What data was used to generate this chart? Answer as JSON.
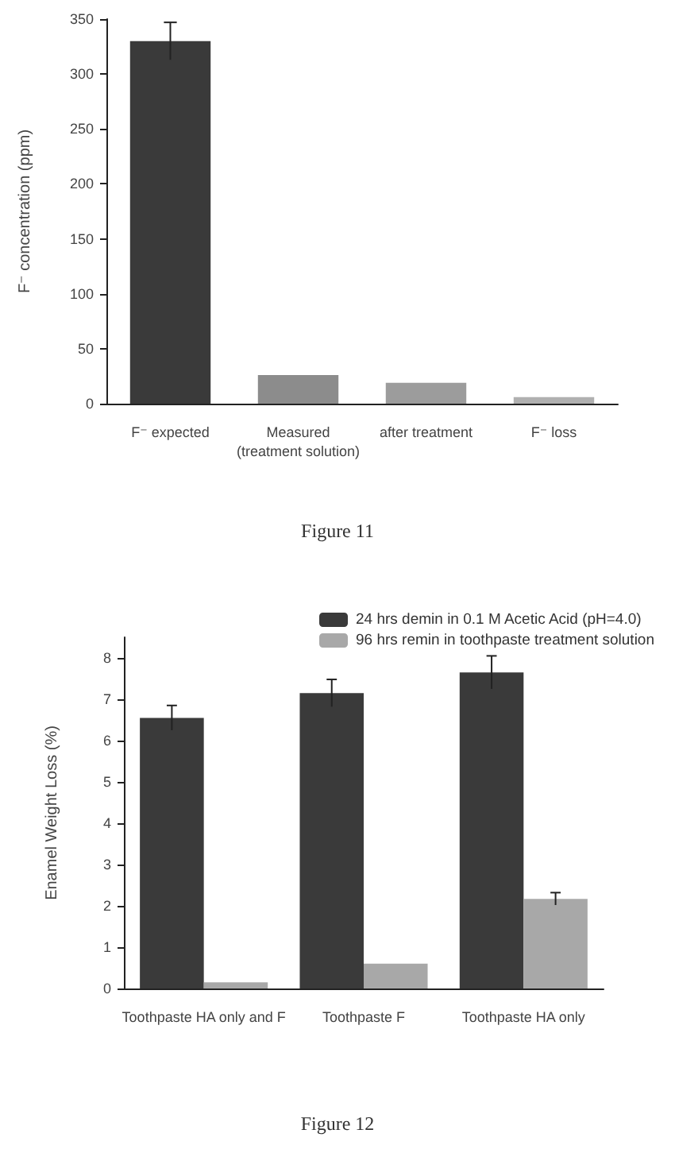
{
  "chart_data": [
    {
      "type": "bar",
      "ylabel": "F⁻ concentration (ppm)",
      "categories": [
        "F⁻ expected",
        "Measured\n(treatment solution)",
        "after treatment",
        "F⁻ loss"
      ],
      "values": [
        330,
        26,
        19,
        6
      ],
      "colors": [
        "#3a3a3a",
        "#8c8c8c",
        "#9c9c9c",
        "#b0b0b0"
      ],
      "errors": [
        17,
        null,
        null,
        null
      ],
      "ylim": [
        0,
        350
      ],
      "yticks": [
        0,
        50,
        100,
        150,
        200,
        250,
        300,
        350
      ],
      "grid": false,
      "annotations": [
        "Figure 11"
      ]
    },
    {
      "type": "bar",
      "ylabel": "Enamel Weight Loss (%)",
      "categories": [
        "Toothpaste HA only and F",
        "Toothpaste F",
        "Toothpaste HA only"
      ],
      "series": [
        {
          "name": "24 hrs demin in 0.1 M Acetic Acid (pH=4.0)",
          "color": "#3a3a3a",
          "values": [
            6.55,
            7.15,
            7.65
          ],
          "errors": [
            0.3,
            0.33,
            0.4
          ]
        },
        {
          "name": "96 hrs remin in toothpaste treatment solution",
          "color": "#a8a8a8",
          "values": [
            0.15,
            0.6,
            2.17
          ],
          "errors": [
            null,
            null,
            0.15
          ]
        }
      ],
      "ylim": [
        0,
        8.5
      ],
      "yticks": [
        0,
        1,
        2,
        3,
        4,
        5,
        6,
        7,
        8
      ],
      "grid": false,
      "legend": "top right",
      "annotations": [
        "Figure 12"
      ]
    }
  ]
}
